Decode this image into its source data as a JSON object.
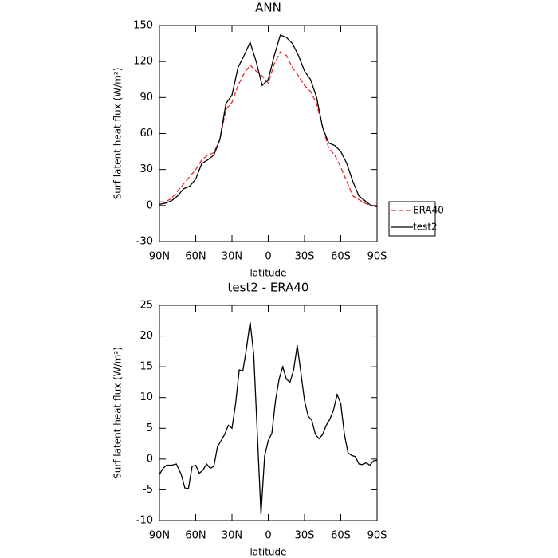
{
  "chart_data": [
    {
      "type": "line",
      "title": "ANN",
      "xlabel": "latitude",
      "ylabel": "Surf latent heat flux (W/m²)",
      "x": [
        90,
        85,
        80,
        75,
        70,
        65,
        60,
        55,
        50,
        45,
        40,
        35,
        30,
        25,
        20,
        15,
        10,
        5,
        0,
        -5,
        -10,
        -15,
        -20,
        -25,
        -30,
        -35,
        -40,
        -45,
        -50,
        -55,
        -60,
        -65,
        -70,
        -75,
        -80,
        -85,
        -90
      ],
      "series": [
        {
          "name": "ERA40",
          "color": "#e8262b",
          "dash": true,
          "values": [
            3,
            3,
            6,
            12,
            18,
            24,
            30,
            38,
            42,
            44,
            55,
            80,
            86,
            100,
            110,
            117,
            112,
            108,
            102,
            118,
            128,
            125,
            115,
            108,
            100,
            95,
            85,
            65,
            48,
            42,
            32,
            20,
            8,
            5,
            2,
            0,
            0
          ]
        },
        {
          "name": "test2",
          "color": "#000000",
          "dash": false,
          "values": [
            1,
            2,
            4,
            8,
            14,
            16,
            22,
            35,
            38,
            42,
            55,
            85,
            92,
            115,
            125,
            136,
            120,
            100,
            105,
            125,
            142,
            140,
            135,
            125,
            112,
            105,
            90,
            65,
            52,
            50,
            45,
            35,
            20,
            8,
            4,
            0,
            -1
          ]
        }
      ],
      "xlim": [
        90,
        -90
      ],
      "xticks": [
        {
          "value": 90,
          "label": "90N"
        },
        {
          "value": 60,
          "label": "60N"
        },
        {
          "value": 30,
          "label": "30N"
        },
        0,
        {
          "value": -30,
          "label": "30S"
        },
        {
          "value": -60,
          "label": "60S"
        },
        {
          "value": -90,
          "label": "90S"
        }
      ],
      "ylim": [
        -30,
        150
      ],
      "yticks": [
        -30,
        0,
        30,
        60,
        90,
        120,
        150
      ],
      "legend": "right"
    },
    {
      "type": "line",
      "title": "test2 - ERA40",
      "xlabel": "latitude",
      "ylabel": "Surf latent heat flux (W/m²)",
      "x": [
        90,
        87,
        84,
        80,
        76,
        72,
        69,
        66,
        63,
        60,
        57,
        54,
        51,
        48,
        45,
        42,
        39,
        36,
        33,
        30,
        27,
        24,
        21,
        18,
        15,
        12,
        9,
        6,
        3,
        0,
        -3,
        -6,
        -9,
        -12,
        -15,
        -18,
        -21,
        -24,
        -27,
        -30,
        -33,
        -36,
        -39,
        -42,
        -45,
        -48,
        -51,
        -54,
        -57,
        -60,
        -63,
        -66,
        -69,
        -72,
        -75,
        -78,
        -81,
        -84,
        -87,
        -90
      ],
      "series": [
        {
          "color": "#000000",
          "dash": false,
          "values": [
            -2.5,
            -1.5,
            -1,
            -1,
            -0.8,
            -2.5,
            -4.7,
            -4.8,
            -1.2,
            -1,
            -2.3,
            -1.8,
            -0.8,
            -1.5,
            -1.2,
            2,
            3,
            4,
            5.5,
            5,
            9,
            14.5,
            14.3,
            18,
            22.3,
            17,
            4,
            -9,
            0.5,
            3,
            4.2,
            9.5,
            13,
            15,
            13,
            12.5,
            14.5,
            18.5,
            14,
            9.5,
            7,
            6.3,
            4,
            3.3,
            4,
            5.5,
            6.5,
            8,
            10.5,
            9,
            4,
            1,
            0.6,
            0.4,
            -0.8,
            -0.9,
            -0.6,
            -1,
            -0.3,
            -0.2
          ]
        }
      ],
      "xlim": [
        90,
        -90
      ],
      "xticks": [
        {
          "value": 90,
          "label": "90N"
        },
        {
          "value": 60,
          "label": "60N"
        },
        {
          "value": 30,
          "label": "30N"
        },
        0,
        {
          "value": -30,
          "label": "30S"
        },
        {
          "value": -60,
          "label": "60S"
        },
        {
          "value": -90,
          "label": "90S"
        }
      ],
      "ylim": [
        -10,
        25
      ],
      "yticks": [
        -10,
        -5,
        0,
        5,
        10,
        15,
        20,
        25
      ]
    }
  ]
}
